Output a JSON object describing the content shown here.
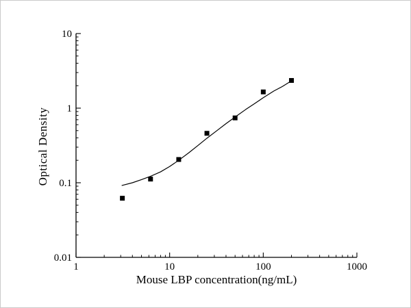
{
  "figure": {
    "background": "#ffffff",
    "border_color": "#c9c9c9"
  },
  "chart_data": {
    "type": "scatter",
    "title": "",
    "xlabel": "Mouse LBP concentration(ng/mL)",
    "ylabel": "Optical Density",
    "x_scale": "log",
    "y_scale": "log",
    "xlim": [
      1,
      1000
    ],
    "ylim": [
      0.01,
      10
    ],
    "x_ticks": [
      1,
      10,
      100,
      1000
    ],
    "y_ticks": [
      0.01,
      0.1,
      1,
      10
    ],
    "x_tick_labels": [
      "1",
      "10",
      "100",
      "1000"
    ],
    "y_tick_labels": [
      "0.01",
      "0.1",
      "1",
      "10"
    ],
    "grid": false,
    "legend": false,
    "axis_color": "#000000",
    "series": [
      {
        "name": "standards",
        "marker": "square",
        "marker_color": "#000000",
        "x": [
          3.125,
          6.25,
          12.5,
          25,
          50,
          100,
          200
        ],
        "y": [
          0.062,
          0.112,
          0.205,
          0.46,
          0.74,
          1.65,
          2.35
        ]
      }
    ],
    "fit_curve": {
      "name": "fitted-curve",
      "color": "#000000",
      "x": [
        3.1,
        4,
        5,
        6.25,
        8,
        10,
        12.5,
        16,
        20,
        25,
        32,
        40,
        50,
        65,
        80,
        100,
        130,
        160,
        200
      ],
      "y": [
        0.092,
        0.1,
        0.11,
        0.122,
        0.14,
        0.165,
        0.2,
        0.252,
        0.315,
        0.395,
        0.5,
        0.62,
        0.76,
        0.96,
        1.14,
        1.38,
        1.7,
        1.95,
        2.32
      ]
    }
  }
}
